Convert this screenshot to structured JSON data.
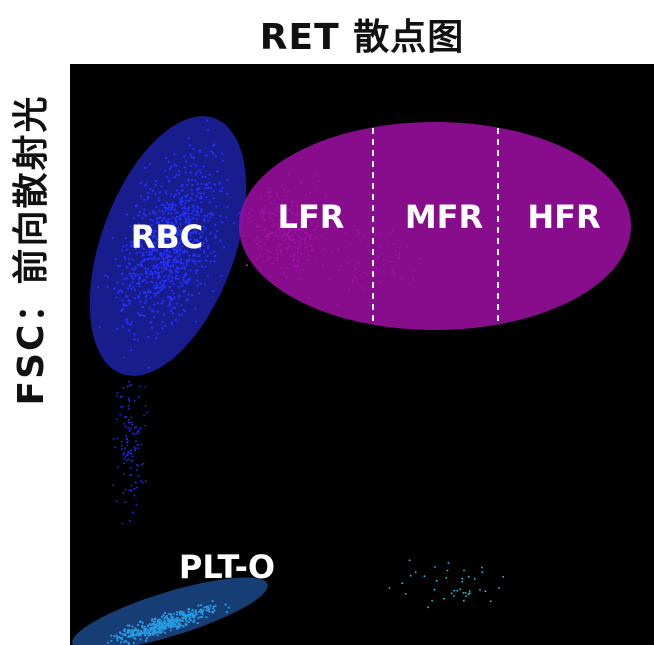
{
  "chart_data": {
    "type": "scatter",
    "title": "RET 散点图",
    "xlabel": "",
    "ylabel": "FSC：前向散射光",
    "grid": false,
    "background": "#000000",
    "regions": [
      {
        "name": "RBC",
        "color": "#2233ff"
      },
      {
        "name": "LFR",
        "color": "#9a0fa0"
      },
      {
        "name": "MFR",
        "color": "#9a0fa0"
      },
      {
        "name": "HFR",
        "color": "#9a0fa0"
      },
      {
        "name": "PLT-O",
        "color": "#2a6fd6"
      }
    ],
    "dot_colors": {
      "rbc": "#1f2cff",
      "reticulocyte": "#d020d8",
      "platelet": "#22ccee"
    }
  }
}
